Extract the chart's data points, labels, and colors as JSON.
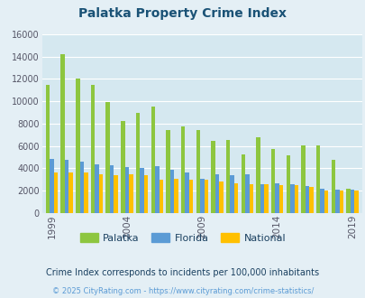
{
  "title": "Palatka Property Crime Index",
  "title_color": "#1a5276",
  "subtitle": "Crime Index corresponds to incidents per 100,000 inhabitants",
  "footer": "© 2025 CityRating.com - https://www.cityrating.com/crime-statistics/",
  "years": [
    1999,
    2000,
    2001,
    2002,
    2003,
    2004,
    2005,
    2006,
    2007,
    2008,
    2009,
    2010,
    2011,
    2012,
    2013,
    2014,
    2015,
    2016,
    2017,
    2018,
    2019
  ],
  "palatka": [
    11500,
    14200,
    12050,
    11500,
    9950,
    8250,
    9000,
    9500,
    7450,
    7750,
    7450,
    6450,
    6550,
    5250,
    6800,
    5700,
    5200,
    6050,
    6050,
    4750,
    2200
  ],
  "florida": [
    4850,
    4750,
    4600,
    4400,
    4250,
    4150,
    4050,
    4200,
    3850,
    3650,
    3100,
    3450,
    3350,
    3450,
    2600,
    2650,
    2550,
    2400,
    2200,
    2100,
    2100
  ],
  "national": [
    3600,
    3600,
    3600,
    3500,
    3400,
    3450,
    3350,
    3000,
    3050,
    3000,
    2950,
    2850,
    2700,
    2600,
    2550,
    2500,
    2500,
    2300,
    2050,
    2000,
    2000
  ],
  "bar_colors": {
    "palatka": "#8dc63f",
    "florida": "#5b9bd5",
    "national": "#ffc000"
  },
  "bg_color": "#e4eff5",
  "plot_bg": "#d5e8f0",
  "ylim": [
    0,
    16000
  ],
  "yticks": [
    0,
    2000,
    4000,
    6000,
    8000,
    10000,
    12000,
    14000,
    16000
  ],
  "xtick_years": [
    1999,
    2004,
    2009,
    2014,
    2019
  ],
  "grid_color": "#ffffff",
  "subtitle_color": "#1a4060",
  "footer_color": "#5b9bd5",
  "bar_width": 0.27
}
